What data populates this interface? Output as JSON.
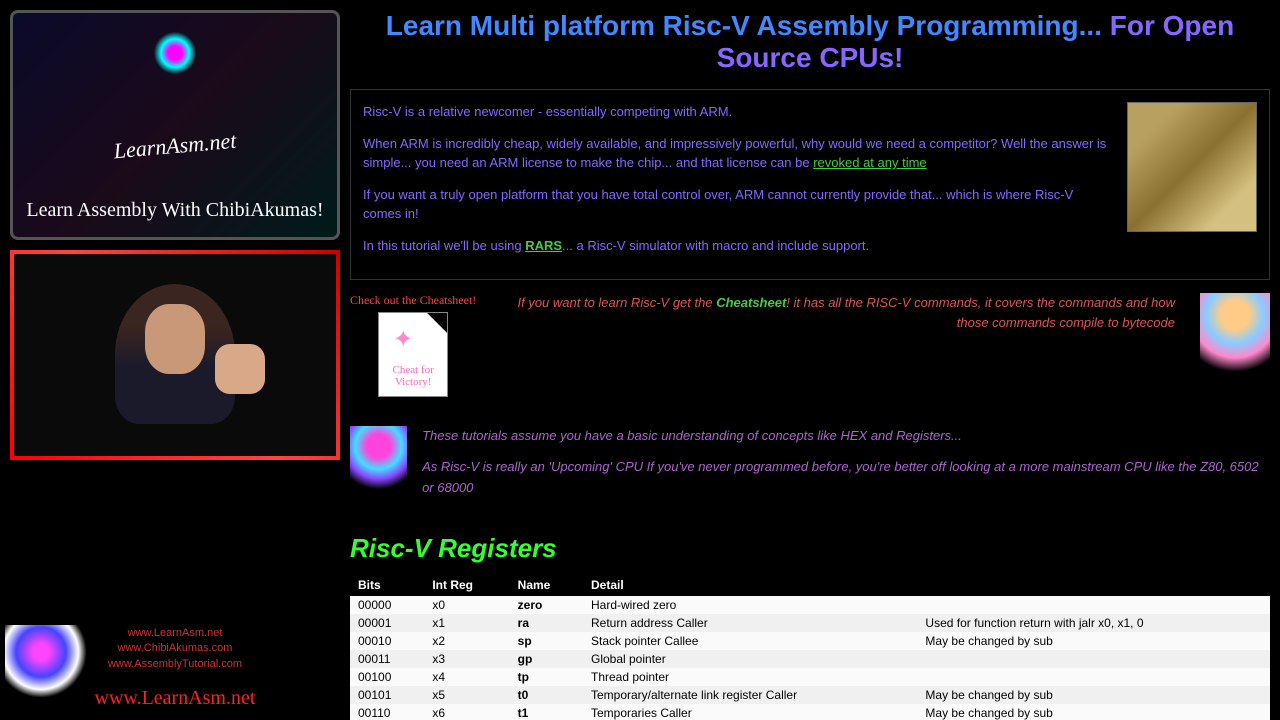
{
  "sidebar": {
    "banner_site": "LearnAsm.net",
    "banner_tagline": "Learn Assembly With ChibiAkumas!",
    "footer_links": [
      "www.LearnAsm.net",
      "www.ChibiAkumas.com",
      "www.AssemblyTutorial.com"
    ],
    "footer_site": "www.LearnAsm.net"
  },
  "title": {
    "part1": "Learn Multi platform Risc-V Assembly Programming... ",
    "part2": "For Open Source CPUs!"
  },
  "intro": {
    "p1": "Risc-V is a relative newcomer - essentially competing with ARM.",
    "p2a": "When ARM is incredibly cheap, widely available, and impressively powerful, why would we need a competitor? Well the answer is simple... you need an ARM license to make the chip... and that license can be ",
    "p2_link": "revoked at any time",
    "p3": "If you want a truly open platform that you have total control over, ARM cannot currently provide that... which is where Risc-V comes in!",
    "p4a": "In this tutorial we'll be using ",
    "p4_link": "RARS",
    "p4b": "... a Risc-V simulator with macro and include support."
  },
  "cheat": {
    "label": "Check out the Cheatsheet!",
    "paper": "Cheat for Victory!",
    "msg1": "If you want to learn Risc-V get the ",
    "msg_link": "Cheatsheet",
    "msg2": "! it has all the RISC-V commands, it covers the commands and how those commands compile to bytecode"
  },
  "tutorial": {
    "p1": "These tutorials assume you have a basic understanding of concepts like HEX and Registers...",
    "p2": "As Risc-V is really an 'Upcoming' CPU If you've never programmed before, you're better off looking at a more mainstream CPU like the Z80, 6502 or 68000"
  },
  "section_header": "Risc-V Registers",
  "table": {
    "headers": [
      "Bits",
      "Int Reg",
      "Name",
      "Detail",
      ""
    ],
    "rows": [
      [
        "00000",
        "x0",
        "zero",
        "Hard-wired zero",
        ""
      ],
      [
        "00001",
        "x1",
        "ra",
        "Return address Caller",
        "Used for function return with jalr x0, x1, 0"
      ],
      [
        "00010",
        "x2",
        "sp",
        "Stack pointer Callee",
        "May be changed by sub"
      ],
      [
        "00011",
        "x3",
        "gp",
        "Global pointer",
        ""
      ],
      [
        "00100",
        "x4",
        "tp",
        "Thread pointer",
        ""
      ],
      [
        "00101",
        "x5",
        "t0",
        "Temporary/alternate link register Caller",
        "May be changed by sub"
      ],
      [
        "00110",
        "x6",
        "t1",
        "Temporaries Caller",
        "May be changed by sub"
      ]
    ]
  }
}
